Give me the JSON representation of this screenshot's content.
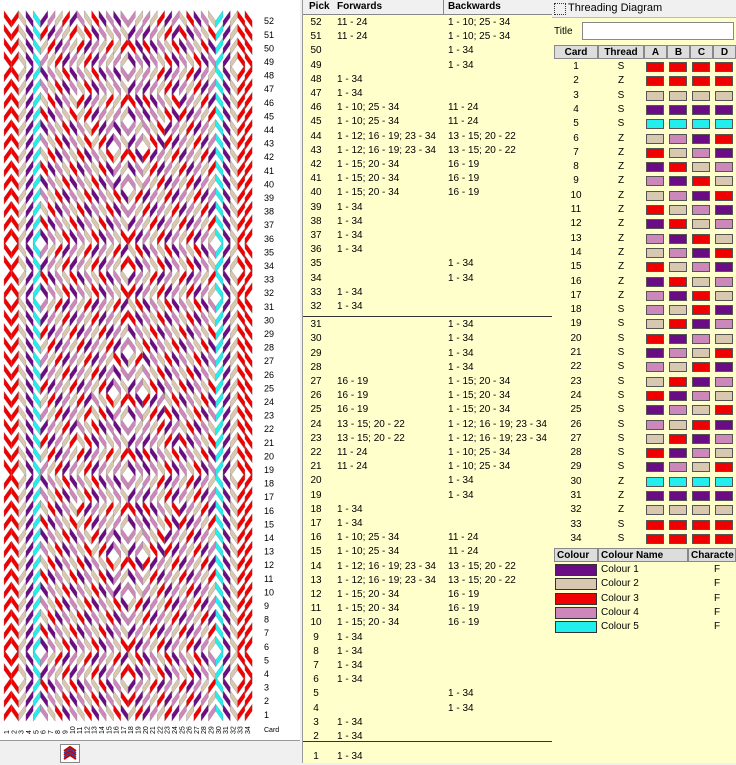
{
  "colors": {
    "colour1": "#6a0d84",
    "colour2": "#d8c8b0",
    "colour3": "#f00000",
    "colour4": "#cc88bb",
    "colour5": "#22eeee"
  },
  "pattern": {
    "card_labels": [
      "1",
      "2",
      "3",
      "4",
      "5",
      "6",
      "7",
      "8",
      "9",
      "10",
      "11",
      "12",
      "13",
      "14",
      "15",
      "16",
      "17",
      "18",
      "19",
      "20",
      "21",
      "22",
      "23",
      "24",
      "25",
      "26",
      "27",
      "28",
      "29",
      "30",
      "31",
      "32",
      "33",
      "34"
    ],
    "corner_label": "Card",
    "toolbar_icon": "weave-icon"
  },
  "pick_table": {
    "headers": {
      "pick": "Pick",
      "forwards": "Forwards",
      "backwards": "Backwards"
    },
    "rows": [
      {
        "pick": "52",
        "fwd": "11 - 24",
        "bwd": "1 - 10; 25 - 34"
      },
      {
        "pick": "51",
        "fwd": "11 - 24",
        "bwd": "1 - 10; 25 - 34"
      },
      {
        "pick": "50",
        "fwd": "",
        "bwd": "1 - 34"
      },
      {
        "pick": "49",
        "fwd": "",
        "bwd": "1 - 34"
      },
      {
        "pick": "48",
        "fwd": "1 - 34",
        "bwd": ""
      },
      {
        "pick": "47",
        "fwd": "1 - 34",
        "bwd": ""
      },
      {
        "pick": "46",
        "fwd": "1 - 10; 25 - 34",
        "bwd": "11 - 24"
      },
      {
        "pick": "45",
        "fwd": "1 - 10; 25 - 34",
        "bwd": "11 - 24"
      },
      {
        "pick": "44",
        "fwd": "1 - 12; 16 - 19; 23 - 34",
        "bwd": "13 - 15; 20 - 22"
      },
      {
        "pick": "43",
        "fwd": "1 - 12; 16 - 19; 23 - 34",
        "bwd": "13 - 15; 20 - 22"
      },
      {
        "pick": "42",
        "fwd": "1 - 15; 20 - 34",
        "bwd": "16 - 19"
      },
      {
        "pick": "41",
        "fwd": "1 - 15; 20 - 34",
        "bwd": "16 - 19"
      },
      {
        "pick": "40",
        "fwd": "1 - 15; 20 - 34",
        "bwd": "16 - 19"
      },
      {
        "pick": "39",
        "fwd": "1 - 34",
        "bwd": ""
      },
      {
        "pick": "38",
        "fwd": "1 - 34",
        "bwd": ""
      },
      {
        "pick": "37",
        "fwd": "1 - 34",
        "bwd": ""
      },
      {
        "pick": "36",
        "fwd": "1 - 34",
        "bwd": ""
      },
      {
        "pick": "35",
        "fwd": "",
        "bwd": "1 - 34"
      },
      {
        "pick": "34",
        "fwd": "",
        "bwd": "1 - 34"
      },
      {
        "pick": "33",
        "fwd": "1 - 34",
        "bwd": ""
      },
      {
        "pick": "32",
        "fwd": "1 - 34",
        "bwd": ""
      },
      {
        "pick": "31",
        "fwd": "",
        "bwd": "1 - 34"
      },
      {
        "pick": "30",
        "fwd": "",
        "bwd": "1 - 34"
      },
      {
        "pick": "29",
        "fwd": "",
        "bwd": "1 - 34"
      },
      {
        "pick": "28",
        "fwd": "",
        "bwd": "1 - 34"
      },
      {
        "pick": "27",
        "fwd": "16 - 19",
        "bwd": "1 - 15; 20 - 34"
      },
      {
        "pick": "26",
        "fwd": "16 - 19",
        "bwd": "1 - 15; 20 - 34"
      },
      {
        "pick": "25",
        "fwd": "16 - 19",
        "bwd": "1 - 15; 20 - 34"
      },
      {
        "pick": "24",
        "fwd": "13 - 15; 20 - 22",
        "bwd": "1 - 12; 16 - 19; 23 - 34"
      },
      {
        "pick": "23",
        "fwd": "13 - 15; 20 - 22",
        "bwd": "1 - 12; 16 - 19; 23 - 34"
      },
      {
        "pick": "22",
        "fwd": "11 - 24",
        "bwd": "1 - 10; 25 - 34"
      },
      {
        "pick": "21",
        "fwd": "11 - 24",
        "bwd": "1 - 10; 25 - 34"
      },
      {
        "pick": "20",
        "fwd": "",
        "bwd": "1 - 34"
      },
      {
        "pick": "19",
        "fwd": "",
        "bwd": "1 - 34"
      },
      {
        "pick": "18",
        "fwd": "1 - 34",
        "bwd": ""
      },
      {
        "pick": "17",
        "fwd": "1 - 34",
        "bwd": ""
      },
      {
        "pick": "16",
        "fwd": "1 - 10; 25 - 34",
        "bwd": "11 - 24"
      },
      {
        "pick": "15",
        "fwd": "1 - 10; 25 - 34",
        "bwd": "11 - 24"
      },
      {
        "pick": "14",
        "fwd": "1 - 12; 16 - 19; 23 - 34",
        "bwd": "13 - 15; 20 - 22"
      },
      {
        "pick": "13",
        "fwd": "1 - 12; 16 - 19; 23 - 34",
        "bwd": "13 - 15; 20 - 22"
      },
      {
        "pick": "12",
        "fwd": "1 - 15; 20 - 34",
        "bwd": "16 - 19"
      },
      {
        "pick": "11",
        "fwd": "1 - 15; 20 - 34",
        "bwd": "16 - 19"
      },
      {
        "pick": "10",
        "fwd": "1 - 15; 20 - 34",
        "bwd": "16 - 19"
      },
      {
        "pick": "9",
        "fwd": "1 - 34",
        "bwd": ""
      },
      {
        "pick": "8",
        "fwd": "1 - 34",
        "bwd": ""
      },
      {
        "pick": "7",
        "fwd": "1 - 34",
        "bwd": ""
      },
      {
        "pick": "6",
        "fwd": "1 - 34",
        "bwd": ""
      },
      {
        "pick": "5",
        "fwd": "",
        "bwd": "1 - 34"
      },
      {
        "pick": "4",
        "fwd": "",
        "bwd": "1 - 34"
      },
      {
        "pick": "3",
        "fwd": "1 - 34",
        "bwd": ""
      },
      {
        "pick": "2",
        "fwd": "1 - 34",
        "bwd": ""
      },
      {
        "pick": "1",
        "fwd": "1 - 34",
        "bwd": ""
      }
    ]
  },
  "threading": {
    "window_title": "Threading Diagram",
    "title_label": "Title",
    "title_value": "",
    "headers": {
      "card": "Card",
      "thread": "Thread",
      "a": "A",
      "b": "B",
      "c": "C",
      "d": "D"
    },
    "rows": [
      {
        "card": "1",
        "thread": "S",
        "holes": [
          3,
          3,
          3,
          3
        ]
      },
      {
        "card": "2",
        "thread": "Z",
        "holes": [
          3,
          3,
          3,
          3
        ]
      },
      {
        "card": "3",
        "thread": "S",
        "holes": [
          2,
          2,
          2,
          2
        ]
      },
      {
        "card": "4",
        "thread": "S",
        "holes": [
          1,
          1,
          1,
          1
        ]
      },
      {
        "card": "5",
        "thread": "S",
        "holes": [
          5,
          5,
          5,
          5
        ]
      },
      {
        "card": "6",
        "thread": "Z",
        "holes": [
          2,
          4,
          1,
          3
        ]
      },
      {
        "card": "7",
        "thread": "Z",
        "holes": [
          3,
          2,
          4,
          1
        ]
      },
      {
        "card": "8",
        "thread": "Z",
        "holes": [
          1,
          3,
          2,
          4
        ]
      },
      {
        "card": "9",
        "thread": "Z",
        "holes": [
          4,
          1,
          3,
          2
        ]
      },
      {
        "card": "10",
        "thread": "Z",
        "holes": [
          2,
          4,
          1,
          3
        ]
      },
      {
        "card": "11",
        "thread": "Z",
        "holes": [
          3,
          2,
          4,
          1
        ]
      },
      {
        "card": "12",
        "thread": "Z",
        "holes": [
          1,
          3,
          2,
          4
        ]
      },
      {
        "card": "13",
        "thread": "Z",
        "holes": [
          4,
          1,
          3,
          2
        ]
      },
      {
        "card": "14",
        "thread": "Z",
        "holes": [
          2,
          4,
          1,
          3
        ]
      },
      {
        "card": "15",
        "thread": "Z",
        "holes": [
          3,
          2,
          4,
          1
        ]
      },
      {
        "card": "16",
        "thread": "Z",
        "holes": [
          1,
          3,
          2,
          4
        ]
      },
      {
        "card": "17",
        "thread": "Z",
        "holes": [
          4,
          1,
          3,
          2
        ]
      },
      {
        "card": "18",
        "thread": "S",
        "holes": [
          4,
          2,
          3,
          1
        ]
      },
      {
        "card": "19",
        "thread": "S",
        "holes": [
          2,
          3,
          1,
          4
        ]
      },
      {
        "card": "20",
        "thread": "S",
        "holes": [
          3,
          1,
          4,
          2
        ]
      },
      {
        "card": "21",
        "thread": "S",
        "holes": [
          1,
          4,
          2,
          3
        ]
      },
      {
        "card": "22",
        "thread": "S",
        "holes": [
          4,
          2,
          3,
          1
        ]
      },
      {
        "card": "23",
        "thread": "S",
        "holes": [
          2,
          3,
          1,
          4
        ]
      },
      {
        "card": "24",
        "thread": "S",
        "holes": [
          3,
          1,
          4,
          2
        ]
      },
      {
        "card": "25",
        "thread": "S",
        "holes": [
          1,
          4,
          2,
          3
        ]
      },
      {
        "card": "26",
        "thread": "S",
        "holes": [
          4,
          2,
          3,
          1
        ]
      },
      {
        "card": "27",
        "thread": "S",
        "holes": [
          2,
          3,
          1,
          4
        ]
      },
      {
        "card": "28",
        "thread": "S",
        "holes": [
          3,
          1,
          4,
          2
        ]
      },
      {
        "card": "29",
        "thread": "S",
        "holes": [
          1,
          4,
          2,
          3
        ]
      },
      {
        "card": "30",
        "thread": "Z",
        "holes": [
          5,
          5,
          5,
          5
        ]
      },
      {
        "card": "31",
        "thread": "Z",
        "holes": [
          1,
          1,
          1,
          1
        ]
      },
      {
        "card": "32",
        "thread": "Z",
        "holes": [
          2,
          2,
          2,
          2
        ]
      },
      {
        "card": "33",
        "thread": "S",
        "holes": [
          3,
          3,
          3,
          3
        ]
      },
      {
        "card": "34",
        "thread": "S",
        "holes": [
          3,
          3,
          3,
          3
        ]
      }
    ]
  },
  "colour_table": {
    "headers": {
      "colour": "Colour",
      "name": "Colour Name",
      "character": "Characte"
    },
    "rows": [
      {
        "name": "Colour 1",
        "char": "F",
        "color": "#6a0d84"
      },
      {
        "name": "Colour 2",
        "char": "F",
        "color": "#d8c8b0"
      },
      {
        "name": "Colour 3",
        "char": "F",
        "color": "#f00000"
      },
      {
        "name": "Colour 4",
        "char": "F",
        "color": "#cc88bb"
      },
      {
        "name": "Colour 5",
        "char": "F",
        "color": "#22eeee"
      }
    ]
  }
}
